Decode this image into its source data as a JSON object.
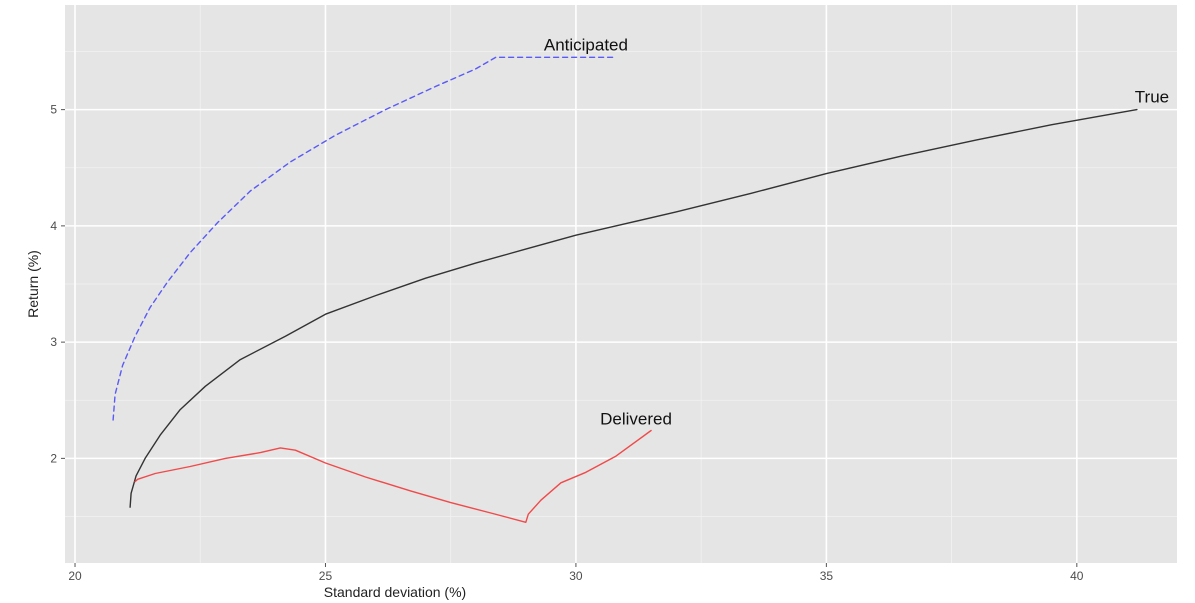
{
  "chart_data": {
    "type": "line",
    "title": "",
    "xlabel": "Standard deviation (%)",
    "ylabel": "Return (%)",
    "xlim": [
      19.8,
      42.0
    ],
    "ylim": [
      1.1,
      5.9
    ],
    "xticks": [
      20,
      25,
      30,
      35,
      40
    ],
    "yticks": [
      2,
      3,
      4,
      5
    ],
    "grid": true,
    "legend": "none",
    "colors": {
      "panel": "#e5e5e5",
      "grid_major": "#ffffff",
      "grid_minor": "#f2f2f2",
      "Anticipated": "#5a5af5",
      "True": "#333333",
      "Delivered": "#f04a4a"
    },
    "series": [
      {
        "name": "Anticipated",
        "style": "dashed",
        "points": [
          [
            20.76,
            2.33
          ],
          [
            20.8,
            2.55
          ],
          [
            20.95,
            2.8
          ],
          [
            21.2,
            3.05
          ],
          [
            21.5,
            3.3
          ],
          [
            21.85,
            3.52
          ],
          [
            22.3,
            3.77
          ],
          [
            22.85,
            4.03
          ],
          [
            23.5,
            4.3
          ],
          [
            24.3,
            4.55
          ],
          [
            25.2,
            4.78
          ],
          [
            26.2,
            5.0
          ],
          [
            27.2,
            5.2
          ],
          [
            28.0,
            5.35
          ],
          [
            28.4,
            5.45
          ],
          [
            30.75,
            5.45
          ]
        ]
      },
      {
        "name": "True",
        "style": "solid",
        "points": [
          [
            21.1,
            1.58
          ],
          [
            21.12,
            1.7
          ],
          [
            21.22,
            1.85
          ],
          [
            21.4,
            2.0
          ],
          [
            21.7,
            2.2
          ],
          [
            22.1,
            2.42
          ],
          [
            22.6,
            2.62
          ],
          [
            23.3,
            2.85
          ],
          [
            24.2,
            3.05
          ],
          [
            25.0,
            3.24
          ],
          [
            26.0,
            3.4
          ],
          [
            27.0,
            3.55
          ],
          [
            28.0,
            3.68
          ],
          [
            29.0,
            3.8
          ],
          [
            30.0,
            3.92
          ],
          [
            31.0,
            4.02
          ],
          [
            32.0,
            4.12
          ],
          [
            33.5,
            4.28
          ],
          [
            35.0,
            4.45
          ],
          [
            36.5,
            4.6
          ],
          [
            38.0,
            4.74
          ],
          [
            39.5,
            4.87
          ],
          [
            41.2,
            5.0
          ]
        ]
      },
      {
        "name": "Delivered",
        "style": "solid",
        "points": [
          [
            21.2,
            1.8
          ],
          [
            21.25,
            1.82
          ],
          [
            21.6,
            1.87
          ],
          [
            22.3,
            1.93
          ],
          [
            23.0,
            2.0
          ],
          [
            23.7,
            2.05
          ],
          [
            24.1,
            2.09
          ],
          [
            24.4,
            2.07
          ],
          [
            25.0,
            1.96
          ],
          [
            25.8,
            1.84
          ],
          [
            26.7,
            1.72
          ],
          [
            27.5,
            1.62
          ],
          [
            28.3,
            1.53
          ],
          [
            29.0,
            1.45
          ],
          [
            29.05,
            1.52
          ],
          [
            29.3,
            1.64
          ],
          [
            29.7,
            1.79
          ],
          [
            30.2,
            1.88
          ],
          [
            30.8,
            2.02
          ],
          [
            31.5,
            2.24
          ]
        ]
      }
    ],
    "annotations": [
      {
        "series": "Anticipated",
        "text": "Anticipated",
        "x": 30.2,
        "y": 5.51
      },
      {
        "series": "True",
        "text": "True",
        "x": 41.5,
        "y": 5.06
      },
      {
        "series": "Delivered",
        "text": "Delivered",
        "x": 31.2,
        "y": 2.29
      }
    ]
  }
}
